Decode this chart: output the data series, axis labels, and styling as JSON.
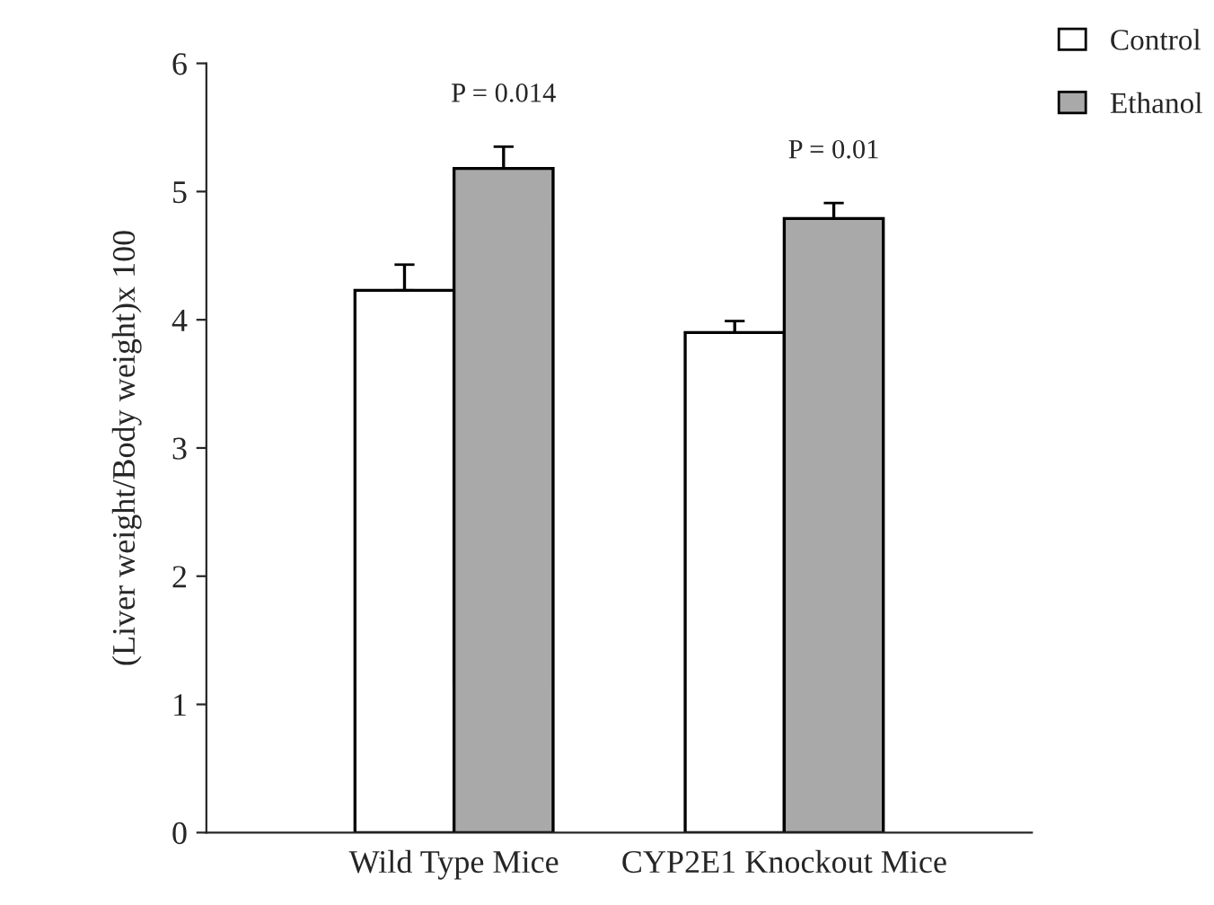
{
  "chart_data": {
    "type": "bar",
    "ylabel": "(Liver weight/Body weight)x 100",
    "categories": [
      "Wild Type Mice",
      "CYP2E1 Knockout Mice"
    ],
    "series": [
      {
        "name": "Control",
        "color": "#ffffff",
        "values": [
          4.23,
          3.9
        ],
        "errors": [
          0.2,
          0.09
        ]
      },
      {
        "name": "Ethanol",
        "color": "#a9a9a9",
        "values": [
          5.18,
          4.79
        ],
        "errors": [
          0.17,
          0.12
        ]
      }
    ],
    "ylim": [
      0,
      6
    ],
    "yticks": [
      0,
      1,
      2,
      3,
      4,
      5,
      6
    ],
    "grid": false,
    "legend": "top right",
    "annotations": [
      "P = 0.014",
      "P = 0.01"
    ]
  }
}
